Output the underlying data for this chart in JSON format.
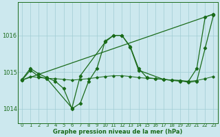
{
  "title": "Graphe pression niveau de la mer (hPa)",
  "bg_color": "#cce8ee",
  "grid_color": "#a0ccd4",
  "line_color": "#1a6b1a",
  "xlim": [
    -0.5,
    23.5
  ],
  "ylim": [
    1013.6,
    1016.9
  ],
  "yticks": [
    1014,
    1015,
    1016
  ],
  "xticks": [
    0,
    1,
    2,
    3,
    4,
    5,
    6,
    7,
    8,
    9,
    10,
    11,
    12,
    13,
    14,
    15,
    16,
    17,
    18,
    19,
    20,
    21,
    22,
    23
  ],
  "series_zigzag": {
    "x": [
      0,
      1,
      2,
      3,
      4,
      5,
      6,
      7,
      8,
      9,
      10,
      11,
      12,
      13,
      14,
      15,
      16,
      17,
      18,
      19,
      20,
      21,
      22,
      23
    ],
    "y": [
      1014.8,
      1015.1,
      1014.95,
      1014.85,
      1014.75,
      1014.55,
      1014.0,
      1014.15,
      1014.75,
      1015.1,
      1015.85,
      1016.0,
      1016.0,
      1015.7,
      1015.1,
      1014.85,
      1014.82,
      1014.8,
      1014.78,
      1014.77,
      1014.72,
      1014.75,
      1015.65,
      1016.55
    ]
  },
  "series_diagonal": {
    "x": [
      0,
      23
    ],
    "y": [
      1014.78,
      1016.58
    ]
  },
  "series_flat": {
    "x": [
      0,
      1,
      2,
      3,
      4,
      5,
      6,
      7,
      8,
      9,
      10,
      11,
      12,
      13,
      14,
      15,
      16,
      17,
      18,
      19,
      20,
      21,
      22,
      23
    ],
    "y": [
      1014.78,
      1014.88,
      1014.85,
      1014.83,
      1014.82,
      1014.8,
      1014.78,
      1014.8,
      1014.82,
      1014.85,
      1014.88,
      1014.9,
      1014.9,
      1014.88,
      1014.85,
      1014.83,
      1014.82,
      1014.8,
      1014.78,
      1014.77,
      1014.75,
      1014.77,
      1014.82,
      1014.88
    ]
  },
  "series_steep": {
    "x": [
      0,
      1,
      2,
      3,
      6,
      7,
      10,
      11,
      12,
      13,
      14,
      17,
      19,
      20,
      21,
      22,
      23
    ],
    "y": [
      1014.78,
      1015.05,
      1014.88,
      1014.82,
      1014.02,
      1014.9,
      1015.82,
      1016.0,
      1016.0,
      1015.68,
      1015.05,
      1014.8,
      1014.75,
      1014.75,
      1015.1,
      1016.5,
      1016.58
    ]
  },
  "marker": "D",
  "markersize": 2.2,
  "linewidth": 0.9
}
